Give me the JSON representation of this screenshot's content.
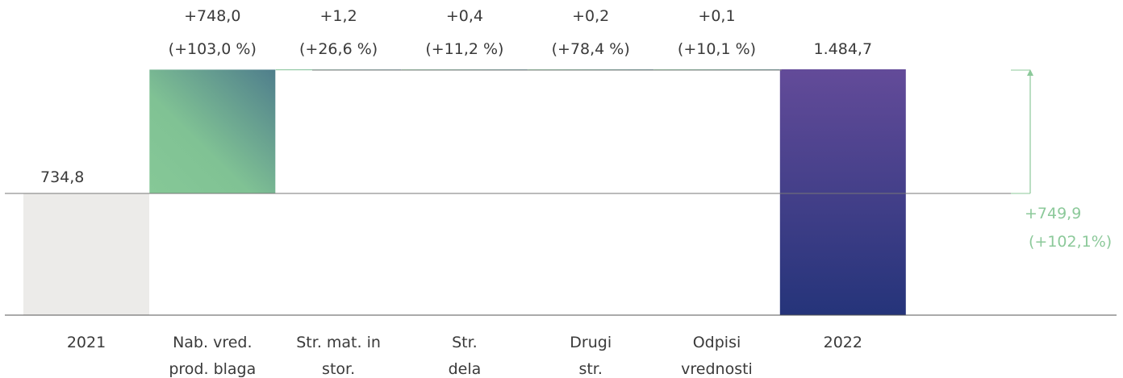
{
  "chart_data": {
    "type": "waterfall",
    "categories": [
      [
        "2021"
      ],
      [
        "Nab. vred.",
        "prod. blaga"
      ],
      [
        "Str. mat. in",
        "stor."
      ],
      [
        "Str.",
        "dela"
      ],
      [
        "Drugi",
        "str."
      ],
      [
        "Odpisi",
        "vrednosti"
      ],
      [
        "2022"
      ]
    ],
    "start": {
      "label": "2021",
      "value": 734.8,
      "value_label": "734,8"
    },
    "end": {
      "label": "2022",
      "value": 1484.7,
      "value_label": "1.484,7"
    },
    "changes": [
      {
        "value": 748.0,
        "delta_label": "+748,0",
        "pct_label": "(+103,0 %)"
      },
      {
        "value": 1.2,
        "delta_label": "+1,2",
        "pct_label": "(+26,6 %)"
      },
      {
        "value": 0.4,
        "delta_label": "+0,4",
        "pct_label": "(+11,2 %)"
      },
      {
        "value": 0.2,
        "delta_label": "+0,2",
        "pct_label": "(+78,4 %)"
      },
      {
        "value": 0.1,
        "delta_label": "+0,1",
        "pct_label": "(+10,1 %)"
      }
    ],
    "total_change": {
      "delta_label": "+749,9",
      "pct_label": "(+102,1%)"
    },
    "ylim": [
      0,
      1484.7
    ],
    "grid": false,
    "colors": {
      "start_bar": "#ecebe9",
      "change_gradient": [
        "#86c897",
        "#4f7e8c"
      ],
      "end_gradient": [
        "#634b99",
        "#25347a"
      ],
      "total_change": "#8cc99a",
      "text": "#3a3a3a",
      "axis": "#555555"
    }
  }
}
